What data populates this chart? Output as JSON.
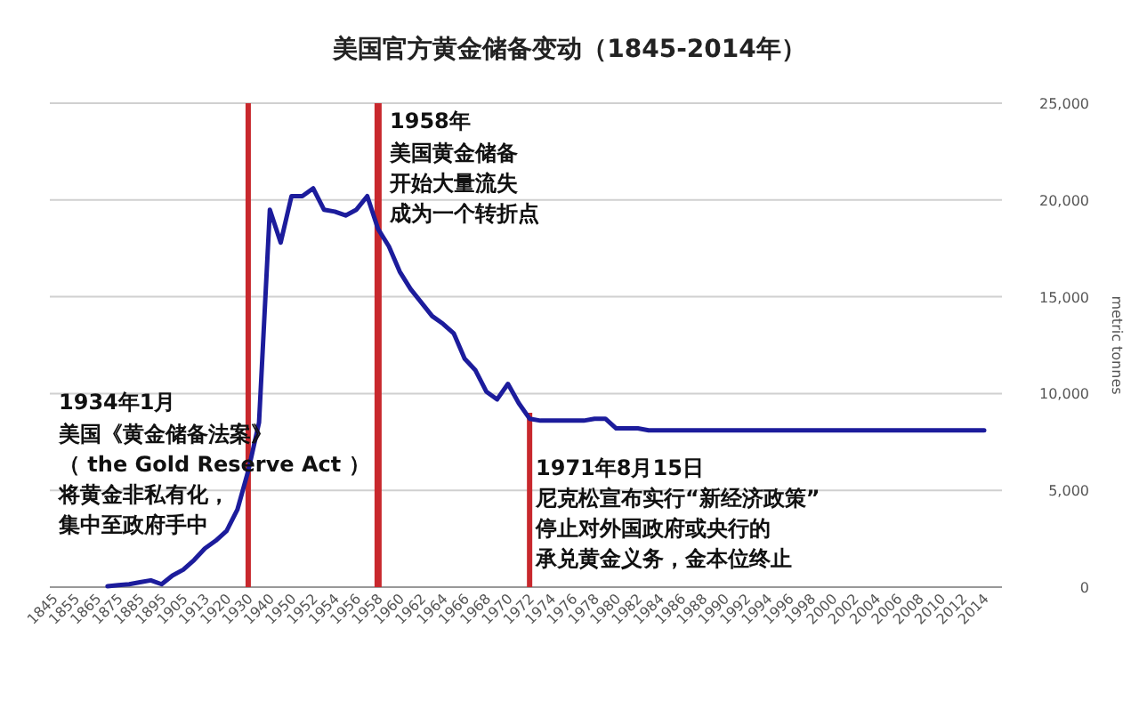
{
  "chart_data": {
    "type": "line",
    "title": "美国官方黄金储备变动（1845-2014年）",
    "ylabel": "metric tonnes",
    "categories": [
      "1845",
      null,
      "1855",
      null,
      "1865",
      null,
      "1875",
      null,
      "1885",
      null,
      "1895",
      null,
      "1905",
      null,
      "1913",
      null,
      "1920",
      null,
      "1930",
      null,
      "1940",
      null,
      "1950",
      null,
      "1952",
      null,
      "1954",
      null,
      "1956",
      null,
      "1958",
      null,
      "1960",
      null,
      "1962",
      null,
      "1964",
      null,
      "1966",
      null,
      "1968",
      null,
      "1970",
      null,
      "1972",
      null,
      "1974",
      null,
      "1976",
      null,
      "1978",
      null,
      "1980",
      null,
      "1982",
      null,
      "1984",
      null,
      "1986",
      null,
      "1988",
      null,
      "1990",
      null,
      "1992",
      null,
      "1994",
      null,
      "1996",
      null,
      "1998",
      null,
      "2000",
      null,
      "2002",
      null,
      "2004",
      null,
      "2006",
      null,
      "2008",
      null,
      "2010",
      null,
      "2012",
      null,
      "2014"
    ],
    "series": [
      {
        "color": "#1c1c9c",
        "values": [
          null,
          null,
          null,
          null,
          null,
          50,
          100,
          150,
          250,
          350,
          150,
          600,
          900,
          1400,
          2000,
          2400,
          2900,
          4000,
          6000,
          8500,
          19500,
          17800,
          20200,
          20200,
          20600,
          19500,
          19400,
          19200,
          19500,
          20200,
          18500,
          17600,
          16300,
          15400,
          14700,
          14000,
          13600,
          13100,
          11800,
          11200,
          10100,
          9700,
          10500,
          9500,
          8700,
          8600,
          8600,
          8600,
          8600,
          8600,
          8700,
          8700,
          8200,
          8200,
          8200,
          8100,
          8100,
          8100,
          8100,
          8100,
          8100,
          8100,
          8100,
          8100,
          8100,
          8100,
          8100,
          8100,
          8100,
          8100,
          8100,
          8100,
          8100,
          8100,
          8100,
          8100,
          8100,
          8100,
          8100,
          8100,
          8100,
          8100,
          8100,
          8100,
          8100,
          8100,
          8100
        ]
      }
    ],
    "ylim": [
      0,
      25000
    ],
    "yticks": [
      0,
      {
        "value": 5000,
        "label": "5,000"
      },
      {
        "value": 10000,
        "label": "10,000"
      },
      {
        "value": 15000,
        "label": "15,000"
      },
      {
        "value": 20000,
        "label": "20,000"
      },
      {
        "value": 25000,
        "label": "25,000"
      }
    ],
    "grid": "y",
    "marker": "none",
    "line_style": "solid",
    "ref_lines": [
      {
        "axis": "x",
        "value": "1930",
        "color": "#c8282d"
      },
      {
        "axis": "x",
        "value": "1958",
        "color": "#c8282d"
      },
      {
        "axis": "x",
        "value": "1972",
        "color": "#c8282d"
      }
    ],
    "annotations": [
      "1934年1月",
      "美国《黄金储备法案》",
      "（ the Gold Reserve Act ）",
      "将黄金非私有化，",
      "集中至政府手中",
      "1958年",
      "美国黄金储备",
      "开始大量流失",
      "成为一个转折点",
      "1971年8月15日",
      "尼克松宣布实行“新经济政策”",
      "停止对外国政府或央行的",
      "承兑黄金义务，金本位终止"
    ]
  }
}
